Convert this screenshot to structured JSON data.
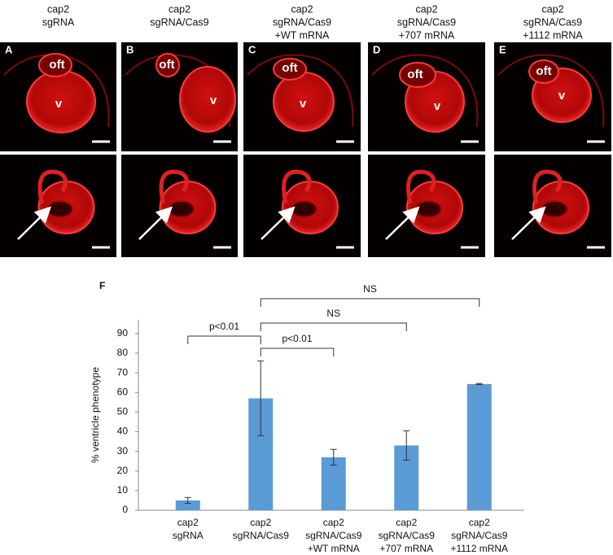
{
  "columns": [
    [
      "cap2",
      "sgRNA"
    ],
    [
      "cap2",
      "sgRNA/Cas9"
    ],
    [
      "cap2",
      "sgRNA/Cas9",
      "+WT mRNA"
    ],
    [
      "cap2",
      "sgRNA/Cas9",
      "+707 mRNA"
    ],
    [
      "cap2",
      "sgRNA/Cas9",
      "+1112 mRNA"
    ]
  ],
  "panels": [
    {
      "letter": "A",
      "labels": [
        "oft",
        "v"
      ]
    },
    {
      "letter": "B",
      "labels": [
        "oft",
        "v"
      ]
    },
    {
      "letter": "C",
      "labels": [
        "oft",
        "v"
      ]
    },
    {
      "letter": "D",
      "labels": [
        "oft",
        "v"
      ]
    },
    {
      "letter": "E",
      "labels": [
        "oft",
        "v"
      ]
    }
  ],
  "chart_data": {
    "type": "bar",
    "panel": "F",
    "ylabel": "% ventricle phenotype",
    "categories": [
      [
        "cap2",
        "sgRNA"
      ],
      [
        "cap2",
        "sgRNA/Cas9"
      ],
      [
        "cap2",
        "sgRNA/Cas9",
        "+WT mRNA"
      ],
      [
        "cap2",
        "sgRNA/Cas9",
        "+707 mRNA"
      ],
      [
        "cap2",
        "sgRNA/Cas9",
        "+1112 mRNA"
      ]
    ],
    "values": [
      5,
      57,
      27,
      33,
      64.3
    ],
    "errors": [
      1.5,
      19,
      4,
      7.5,
      0.3
    ],
    "color": "#5b9bd5",
    "ylim": [
      0,
      97
    ],
    "yticks": [
      0,
      10,
      20,
      30,
      40,
      50,
      60,
      70,
      80,
      90
    ],
    "annotations": [
      {
        "label": "p<0.01",
        "from": 0,
        "to": 1
      },
      {
        "label": "p<0.01",
        "from": 1,
        "to": 2
      },
      {
        "label": "NS",
        "from": 1,
        "to": 3
      },
      {
        "label": "NS",
        "from": 1,
        "to": 4
      }
    ]
  }
}
